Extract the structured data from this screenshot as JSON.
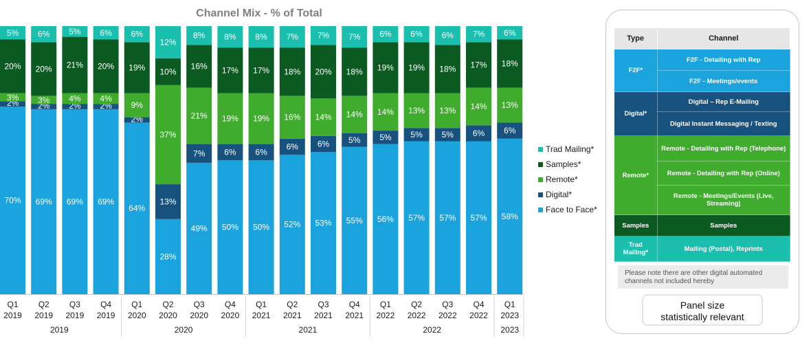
{
  "chart_data": {
    "type": "stacked-bar",
    "title": "Channel Mix - %  of Total",
    "categories": [
      {
        "q": "Q1",
        "y": "2019"
      },
      {
        "q": "Q2",
        "y": "2019"
      },
      {
        "q": "Q3",
        "y": "2019"
      },
      {
        "q": "Q4",
        "y": "2019"
      },
      {
        "q": "Q1",
        "y": "2020"
      },
      {
        "q": "Q2",
        "y": "2020"
      },
      {
        "q": "Q3",
        "y": "2020"
      },
      {
        "q": "Q4",
        "y": "2020"
      },
      {
        "q": "Q1",
        "y": "2021"
      },
      {
        "q": "Q2",
        "y": "2021"
      },
      {
        "q": "Q3",
        "y": "2021"
      },
      {
        "q": "Q4",
        "y": "2021"
      },
      {
        "q": "Q1",
        "y": "2022"
      },
      {
        "q": "Q2",
        "y": "2022"
      },
      {
        "q": "Q3",
        "y": "2022"
      },
      {
        "q": "Q4",
        "y": "2022"
      },
      {
        "q": "Q1",
        "y": "2023"
      }
    ],
    "year_groups": [
      "2019",
      "2020",
      "2021",
      "2022",
      "2023"
    ],
    "series": [
      {
        "name": "Face to Face*",
        "color": "#1ba3dd",
        "values": [
          70,
          69,
          69,
          69,
          64,
          28,
          49,
          50,
          50,
          52,
          53,
          55,
          56,
          57,
          57,
          57,
          58
        ]
      },
      {
        "name": "Digital*",
        "color": "#17527e",
        "values": [
          2,
          2,
          2,
          2,
          2,
          13,
          7,
          6,
          6,
          6,
          6,
          5,
          5,
          5,
          5,
          6,
          6
        ]
      },
      {
        "name": "Remote*",
        "color": "#40ac2e",
        "values": [
          3,
          3,
          4,
          4,
          9,
          37,
          21,
          19,
          19,
          16,
          14,
          14,
          14,
          13,
          13,
          14,
          13
        ]
      },
      {
        "name": "Samples*",
        "color": "#0b5a22",
        "values": [
          20,
          20,
          21,
          20,
          19,
          10,
          16,
          17,
          17,
          18,
          20,
          18,
          19,
          19,
          18,
          17,
          18
        ]
      },
      {
        "name": "Trad Mailing*",
        "color": "#1abfae",
        "values": [
          5,
          6,
          5,
          6,
          6,
          12,
          8,
          8,
          8,
          7,
          7,
          7,
          6,
          6,
          6,
          7,
          6
        ]
      }
    ],
    "ylim": [
      0,
      100
    ]
  },
  "legend": [
    "Trad Mailing*",
    "Samples*",
    "Remote*",
    "Digital*",
    "Face to Face*"
  ],
  "table": {
    "headers": {
      "type": "Type",
      "channel": "Channel"
    },
    "f2f": {
      "type": "F2F*",
      "ch1": "F2F - Detailing with Rep",
      "ch2": "F2F -  Meetings/events"
    },
    "digital": {
      "type": "Digital*",
      "ch1": "Digital – Rep E-Mailing",
      "ch2": "Digital Instant Messaging / Texting"
    },
    "remote": {
      "type": "Remote*",
      "ch1": "Remote - Detailing with Rep (Telephone)",
      "ch2": "Remote - Detailing with Rep (Online)",
      "ch3": "Remote - Meetings/Events (Live, Streaming)"
    },
    "samples": {
      "type": "Samples",
      "ch1": "Samples"
    },
    "trad": {
      "type": "Trad Mailing*",
      "ch1": "Mailing (Postal), Reprints"
    }
  },
  "note": "Please note there are other digital automated channels not included hereby",
  "panel_size": {
    "line1": "Panel size",
    "line2": "statistically relevant"
  }
}
